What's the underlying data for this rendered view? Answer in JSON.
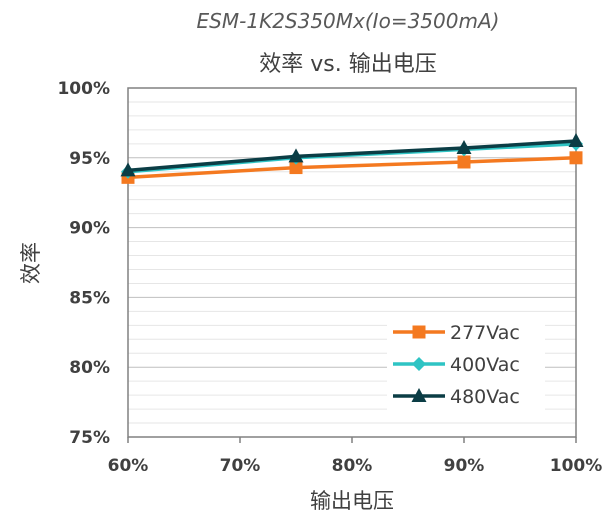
{
  "chart_data": {
    "type": "line",
    "title": "ESM-1K2S350Mx(Io=3500mA)",
    "subtitle": "效率 vs. 输出电压",
    "xlabel": "输出电压",
    "ylabel": "效率",
    "x": [
      60,
      75,
      90,
      100
    ],
    "x_ticks": [
      "60%",
      "70%",
      "80%",
      "90%",
      "100%"
    ],
    "x_tick_values": [
      60,
      70,
      80,
      90,
      100
    ],
    "y_ticks": [
      "75%",
      "80%",
      "85%",
      "90%",
      "95%",
      "100%"
    ],
    "y_tick_values": [
      75,
      80,
      85,
      90,
      95,
      100
    ],
    "xlim": [
      60,
      100
    ],
    "ylim": [
      75,
      100
    ],
    "grid": true,
    "legend_position": "bottom-right",
    "series": [
      {
        "name": "277Vac",
        "values": [
          93.6,
          94.3,
          94.7,
          95.0
        ],
        "color": "#f47920",
        "marker": "square"
      },
      {
        "name": "400Vac",
        "values": [
          94.0,
          95.0,
          95.6,
          96.0
        ],
        "color": "#2ec4c4",
        "marker": "diamond"
      },
      {
        "name": "480Vac",
        "values": [
          94.1,
          95.1,
          95.7,
          96.2
        ],
        "color": "#0b3d45",
        "marker": "triangle"
      }
    ]
  }
}
